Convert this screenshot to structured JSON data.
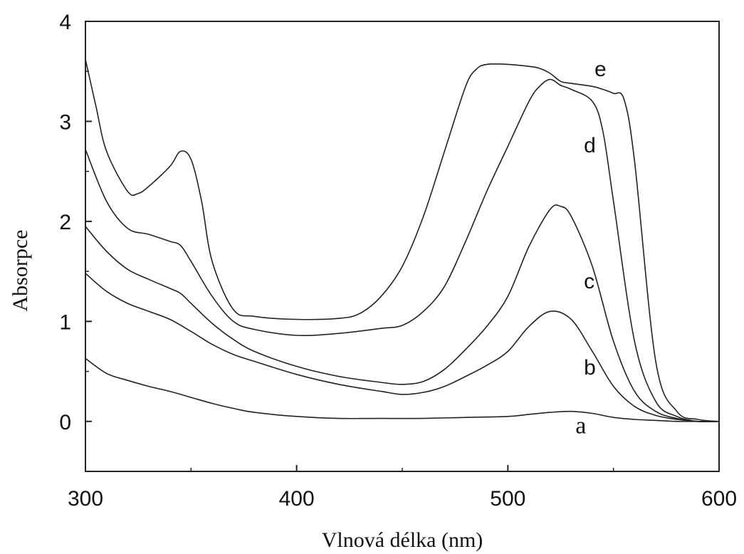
{
  "chart_data": {
    "type": "line",
    "xlabel": "Vlnová délka (nm)",
    "ylabel": "Absorpce",
    "xlim": [
      300,
      600
    ],
    "ylim": [
      -0.5,
      4
    ],
    "x_ticks": [
      300,
      400,
      500,
      600
    ],
    "y_ticks": [
      0,
      1,
      2,
      3,
      4
    ],
    "grid": false,
    "series": [
      {
        "name": "a",
        "x": [
          300,
          310,
          320,
          330,
          340,
          350,
          360,
          370,
          380,
          400,
          420,
          440,
          460,
          480,
          500,
          510,
          520,
          530,
          540,
          550,
          560,
          570,
          580,
          590,
          600
        ],
        "y": [
          0.63,
          0.48,
          0.41,
          0.35,
          0.3,
          0.24,
          0.18,
          0.13,
          0.09,
          0.05,
          0.03,
          0.03,
          0.03,
          0.04,
          0.05,
          0.07,
          0.09,
          0.1,
          0.08,
          0.04,
          0.02,
          0.01,
          0.0,
          0.0,
          0.0
        ]
      },
      {
        "name": "b",
        "x": [
          300,
          310,
          320,
          330,
          340,
          350,
          360,
          370,
          380,
          400,
          420,
          440,
          450,
          460,
          470,
          480,
          490,
          500,
          510,
          520,
          530,
          540,
          550,
          560,
          570,
          580,
          590,
          600
        ],
        "y": [
          1.48,
          1.3,
          1.18,
          1.1,
          1.02,
          0.9,
          0.77,
          0.67,
          0.6,
          0.47,
          0.37,
          0.3,
          0.27,
          0.29,
          0.35,
          0.45,
          0.56,
          0.7,
          0.95,
          1.1,
          1.02,
          0.7,
          0.35,
          0.15,
          0.06,
          0.02,
          0.0,
          0.0
        ]
      },
      {
        "name": "c",
        "x": [
          300,
          310,
          320,
          330,
          340,
          345,
          350,
          360,
          370,
          380,
          400,
          420,
          440,
          450,
          460,
          470,
          480,
          490,
          500,
          510,
          520,
          525,
          530,
          540,
          550,
          560,
          570,
          580,
          590,
          600
        ],
        "y": [
          1.95,
          1.7,
          1.52,
          1.42,
          1.33,
          1.28,
          1.18,
          0.98,
          0.82,
          0.7,
          0.55,
          0.45,
          0.39,
          0.37,
          0.4,
          0.52,
          0.72,
          0.95,
          1.25,
          1.75,
          2.12,
          2.15,
          2.05,
          1.55,
          0.8,
          0.3,
          0.1,
          0.03,
          0.0,
          0.0
        ]
      },
      {
        "name": "d",
        "x": [
          300,
          310,
          320,
          330,
          340,
          345,
          350,
          360,
          370,
          380,
          400,
          420,
          440,
          450,
          460,
          470,
          480,
          490,
          500,
          510,
          515,
          520,
          525,
          530,
          540,
          545,
          550,
          560,
          570,
          580,
          590,
          600
        ],
        "y": [
          2.72,
          2.2,
          1.93,
          1.87,
          1.8,
          1.76,
          1.6,
          1.25,
          1.0,
          0.92,
          0.86,
          0.88,
          0.93,
          0.96,
          1.1,
          1.35,
          1.8,
          2.3,
          2.75,
          3.2,
          3.35,
          3.42,
          3.36,
          3.32,
          3.2,
          2.9,
          2.2,
          0.8,
          0.2,
          0.05,
          0.0,
          0.0
        ]
      },
      {
        "name": "e",
        "x": [
          300,
          305,
          310,
          320,
          325,
          330,
          340,
          345,
          350,
          355,
          360,
          370,
          380,
          400,
          420,
          430,
          440,
          450,
          460,
          470,
          480,
          485,
          490,
          500,
          510,
          515,
          520,
          525,
          530,
          540,
          545,
          550,
          555,
          560,
          570,
          580,
          590,
          600
        ],
        "y": [
          3.62,
          3.15,
          2.7,
          2.3,
          2.28,
          2.35,
          2.55,
          2.7,
          2.62,
          2.2,
          1.6,
          1.12,
          1.05,
          1.02,
          1.03,
          1.08,
          1.25,
          1.55,
          2.05,
          2.7,
          3.35,
          3.52,
          3.57,
          3.57,
          3.55,
          3.53,
          3.48,
          3.4,
          3.38,
          3.35,
          3.32,
          3.28,
          3.22,
          2.6,
          0.6,
          0.1,
          0.02,
          0.0
        ]
      }
    ],
    "curve_labels": [
      {
        "text": "a",
        "x": 532,
        "y": -0.12,
        "font": "serif"
      },
      {
        "text": "b",
        "x": 536,
        "y": 0.47,
        "font": "sans"
      },
      {
        "text": "c",
        "x": 536,
        "y": 1.33,
        "font": "sans"
      },
      {
        "text": "d",
        "x": 536,
        "y": 2.69,
        "font": "sans"
      },
      {
        "text": "e",
        "x": 541,
        "y": 3.45,
        "font": "sans"
      }
    ]
  }
}
